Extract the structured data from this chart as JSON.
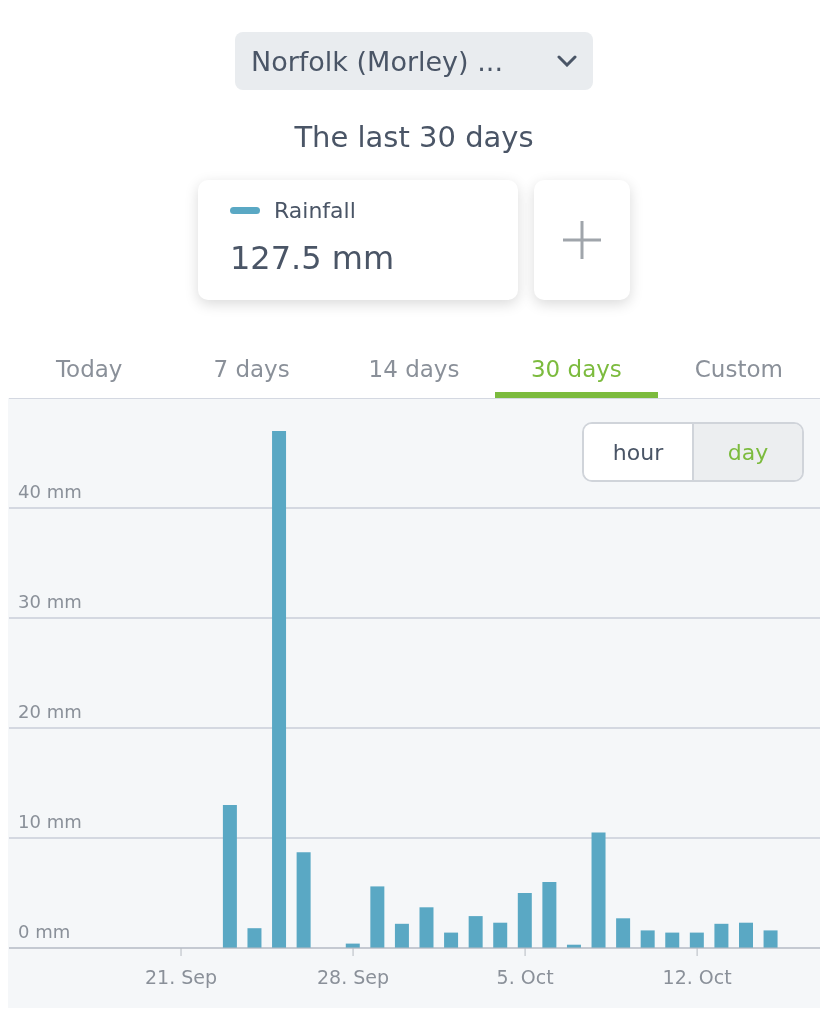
{
  "chart_data": {
    "type": "bar",
    "title": "The last 30 days",
    "annotations": [
      "Norfolk (Morley) ...",
      "127.5 mm",
      "Today",
      "7 days",
      "14 days",
      "30 days",
      "Custom",
      "hour",
      "day"
    ],
    "x": [
      "--09-16",
      "--09-17",
      "--09-18",
      "--09-19",
      "--09-20",
      "--09-21",
      "--09-22",
      "--09-23",
      "--09-24",
      "--09-25",
      "--09-26",
      "--09-27",
      "--09-28",
      "--09-29",
      "--09-30",
      "--10-01",
      "--10-02",
      "--10-03",
      "--10-04",
      "--10-05",
      "--10-06",
      "--10-07",
      "--10-08",
      "--10-09",
      "--10-10",
      "--10-11",
      "--10-12",
      "--10-13",
      "--10-14",
      "--10-15"
    ],
    "series": [
      {
        "name": "Rainfall",
        "color": "#5aa8c4",
        "values": [
          0,
          0,
          0,
          0,
          0,
          0,
          0,
          13.0,
          1.8,
          47.0,
          8.7,
          0,
          0.4,
          5.6,
          2.2,
          3.7,
          1.4,
          2.9,
          2.3,
          5.0,
          6.0,
          0.3,
          10.5,
          2.7,
          1.6,
          1.4,
          1.4,
          2.2,
          2.3,
          1.6
        ]
      }
    ],
    "xlim": [
      "--09-14",
      "--10-17"
    ],
    "xticks": [
      {
        "value": "--09-21",
        "label": "21. Sep"
      },
      {
        "value": "--09-28",
        "label": "28. Sep"
      },
      {
        "value": "--10-05",
        "label": "5. Oct"
      },
      {
        "value": "--10-12",
        "label": "12. Oct"
      }
    ],
    "ylim": [
      0,
      50
    ],
    "yticks": [
      {
        "value": 0,
        "label": "0 mm"
      },
      {
        "value": 10,
        "label": "10 mm"
      },
      {
        "value": 20,
        "label": "20 mm"
      },
      {
        "value": 30,
        "label": "30 mm"
      },
      {
        "value": 40,
        "label": "40 mm"
      }
    ],
    "grid": "y",
    "legend": "top"
  }
}
